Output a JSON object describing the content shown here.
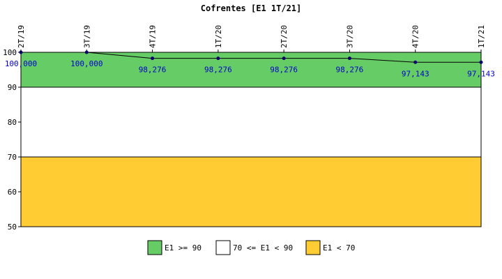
{
  "chart_data": {
    "type": "line",
    "title": "Cofrentes [E1 1T/21]",
    "xlabel": "",
    "ylabel": "",
    "categories": [
      "2T/19",
      "3T/19",
      "4T/19",
      "1T/20",
      "2T/20",
      "3T/20",
      "4T/20",
      "1T/21"
    ],
    "series": [
      {
        "values": [
          100,
          100,
          98.276,
          98.276,
          98.276,
          98.276,
          97.143,
          97.143
        ],
        "labels": [
          "100,000",
          "100,000",
          "98,276",
          "98,276",
          "98,276",
          "98,276",
          "97,143",
          "97,143"
        ],
        "color": "#000066"
      }
    ],
    "ylim": [
      50,
      100
    ],
    "yticks": [
      50,
      60,
      70,
      80,
      90,
      100
    ],
    "grid": false,
    "bands": [
      {
        "from": 90,
        "to": 100,
        "color": "#66cc66",
        "legend": "E1 >= 90"
      },
      {
        "from": 70,
        "to": 90,
        "color": "#ffffff",
        "legend": "70 <= E1 < 90"
      },
      {
        "from": 50,
        "to": 70,
        "color": "#ffcc33",
        "legend": "E1 < 70"
      }
    ],
    "legend_position": "bottom"
  }
}
